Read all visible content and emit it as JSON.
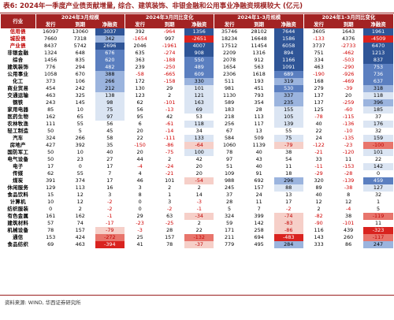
{
  "title": "表6: 2024年一季度产业债贡献增量, 综合、建筑装饰、非银金融和公用事业净融资规模较大 (亿元)",
  "source": "资料来源: WIND, 华西证券研究所",
  "header": {
    "industry": "行业",
    "groups": [
      "2024年3月规模",
      "2024年3月同比变化",
      "2024年1-3月规模",
      "2024年1-3月同比变化"
    ],
    "cols": [
      "发行",
      "到期",
      "净融资"
    ]
  },
  "colors": {
    "header_bg": "#a32323",
    "blue_strong": "#2f5597",
    "blue_mid": "#5b7fc0",
    "blue_light": "#9bb4de",
    "blue_pale": "#dbe5f3",
    "red_strong": "#d9231f",
    "red_mid": "#e8756c",
    "red_pale": "#f6cfc8"
  },
  "rows": [
    {
      "name": "信用债",
      "hl": true,
      "v": [
        16097,
        13060,
        3037,
        392,
        -964,
        1356,
        35746,
        28102,
        7644,
        3605,
        1643,
        1961
      ]
    },
    {
      "name": "城投债",
      "hl": true,
      "v": [
        7660,
        7318,
        342,
        -1654,
        997,
        -2651,
        18234,
        16648,
        1586,
        -133,
        4376,
        -4509
      ]
    },
    {
      "name": "产业债",
      "hl": true,
      "v": [
        8437,
        5742,
        2696,
        2046,
        -1961,
        4007,
        17512,
        11454,
        6058,
        3737,
        -2733,
        6470
      ]
    },
    {
      "name": "非银金融",
      "hl": false,
      "v": [
        1324,
        648,
        676,
        635,
        -274,
        908,
        2209,
        1316,
        894,
        751,
        -462,
        1213
      ]
    },
    {
      "name": "综合",
      "hl": false,
      "v": [
        1456,
        835,
        620,
        363,
        -188,
        550,
        2078,
        912,
        1166,
        334,
        -503,
        837
      ]
    },
    {
      "name": "建筑装饰",
      "hl": false,
      "v": [
        776,
        294,
        482,
        239,
        -250,
        489,
        1654,
        563,
        1091,
        463,
        -290,
        753
      ]
    },
    {
      "name": "公用事业",
      "hl": false,
      "v": [
        1058,
        670,
        388,
        -58,
        -665,
        609,
        2306,
        1618,
        689,
        -190,
        -926,
        736
      ]
    },
    {
      "name": "化工",
      "hl": false,
      "v": [
        373,
        106,
        266,
        172,
        -158,
        330,
        511,
        193,
        319,
        168,
        -469,
        637
      ]
    },
    {
      "name": "商业贸易",
      "hl": false,
      "v": [
        454,
        242,
        212,
        130,
        29,
        101,
        981,
        451,
        530,
        279,
        -39,
        318
      ]
    },
    {
      "name": "交通运输",
      "hl": false,
      "v": [
        463,
        325,
        138,
        123,
        2,
        121,
        1130,
        793,
        337,
        137,
        20,
        118
      ]
    },
    {
      "name": "钢铁",
      "hl": false,
      "v": [
        243,
        145,
        98,
        62,
        -101,
        163,
        589,
        354,
        235,
        137,
        -259,
        396
      ]
    },
    {
      "name": "家用电器",
      "hl": false,
      "v": [
        85,
        10,
        75,
        56,
        -13,
        69,
        183,
        28,
        155,
        125,
        -60,
        185
      ]
    },
    {
      "name": "医药生物",
      "hl": false,
      "v": [
        162,
        65,
        97,
        95,
        42,
        53,
        218,
        113,
        105,
        -78,
        -115,
        37
      ]
    },
    {
      "name": "农林牧渔",
      "hl": false,
      "v": [
        111,
        55,
        56,
        6,
        -61,
        118,
        256,
        117,
        139,
        40,
        -136,
        176
      ]
    },
    {
      "name": "轻工制造",
      "hl": false,
      "v": [
        50,
        5,
        45,
        20,
        -14,
        34,
        67,
        13,
        55,
        22,
        -10,
        32
      ]
    },
    {
      "name": "汽车",
      "hl": false,
      "v": [
        324,
        266,
        58,
        22,
        -111,
        133,
        584,
        509,
        75,
        24,
        -135,
        159
      ]
    },
    {
      "name": "房地产",
      "hl": false,
      "v": [
        427,
        392,
        35,
        -150,
        -86,
        -64,
        1060,
        1139,
        -79,
        -122,
        -23,
        -100
      ]
    },
    {
      "name": "国防军工",
      "hl": false,
      "v": [
        50,
        10,
        40,
        20,
        -75,
        100,
        78,
        40,
        38,
        -21,
        -120,
        101
      ]
    },
    {
      "name": "电气设备",
      "hl": false,
      "v": [
        50,
        23,
        27,
        44,
        2,
        42,
        97,
        43,
        54,
        33,
        11,
        22
      ]
    },
    {
      "name": "电子",
      "hl": false,
      "v": [
        17,
        0,
        17,
        -4,
        -24,
        20,
        51,
        40,
        11,
        -11,
        -153,
        142
      ]
    },
    {
      "name": "传媒",
      "hl": false,
      "v": [
        62,
        55,
        7,
        4,
        -21,
        20,
        109,
        91,
        18,
        -29,
        -28,
        0
      ]
    },
    {
      "name": "煤炭",
      "hl": false,
      "v": [
        391,
        374,
        17,
        46,
        101,
        -54,
        988,
        692,
        296,
        320,
        -139,
        459
      ]
    },
    {
      "name": "休闲服务",
      "hl": false,
      "v": [
        129,
        113,
        16,
        3,
        2,
        2,
        245,
        157,
        88,
        89,
        -38,
        127
      ]
    },
    {
      "name": "食品饮料",
      "hl": false,
      "v": [
        15,
        12,
        3,
        8,
        1,
        14,
        37,
        24,
        13,
        40,
        8,
        32
      ]
    },
    {
      "name": "计算机",
      "hl": false,
      "v": [
        10,
        12,
        -2,
        0,
        3,
        -3,
        28,
        11,
        17,
        12,
        12,
        1
      ]
    },
    {
      "name": "纺织服装",
      "hl": false,
      "v": [
        0,
        2,
        -2,
        0,
        -2,
        -1,
        5,
        7,
        -2,
        2,
        -4,
        5
      ]
    },
    {
      "name": "有色金属",
      "hl": false,
      "v": [
        161,
        162,
        -1,
        29,
        63,
        -34,
        324,
        399,
        -74,
        -82,
        38,
        -119
      ]
    },
    {
      "name": "建筑材料",
      "hl": false,
      "v": [
        57,
        74,
        -17,
        -23,
        -25,
        2,
        59,
        142,
        -83,
        -90,
        -101,
        11
      ]
    },
    {
      "name": "机械设备",
      "hl": false,
      "v": [
        78,
        157,
        -79,
        -3,
        28,
        22,
        171,
        258,
        -86,
        116,
        439,
        -323
      ]
    },
    {
      "name": "通信",
      "hl": false,
      "v": [
        153,
        424,
        -272,
        25,
        157,
        -132,
        211,
        694,
        -483,
        143,
        260,
        -117
      ]
    },
    {
      "name": "食品纺织",
      "hl": false,
      "v": [
        69,
        463,
        -394,
        41,
        78,
        -37,
        779,
        495,
        284,
        333,
        86,
        247
      ]
    }
  ]
}
